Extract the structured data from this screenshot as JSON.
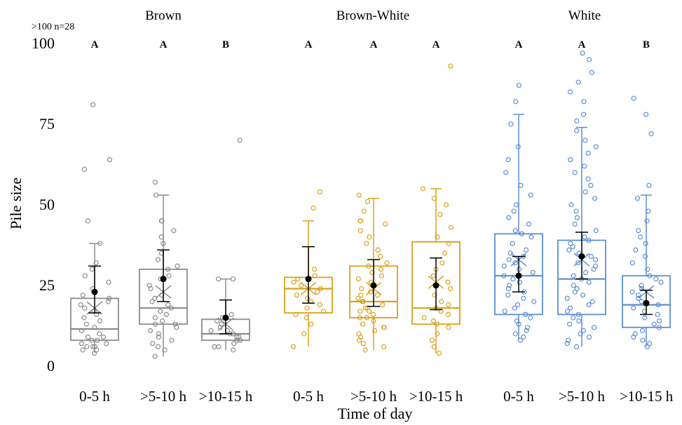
{
  "chart_data": {
    "type": "box",
    "ylabel": "Pile size",
    "xlabel": "Time of day",
    "ylim": [
      0,
      100
    ],
    "yticks": [
      0,
      25,
      50,
      75,
      100
    ],
    "note": ">100 n=28",
    "panels": [
      {
        "name": "Brown",
        "color": "#8c8c8c",
        "categories": [
          "0-5 h",
          ">5-10 h",
          ">10-15 h"
        ],
        "letters": [
          "A",
          "A",
          "B"
        ],
        "boxes": [
          {
            "q1": 8,
            "median": 11.5,
            "q3": 21,
            "whisker_low": 4,
            "whisker_high": 38,
            "mean_x": 18,
            "mean_ci": [
              16.5,
              31
            ],
            "est_mean": 23,
            "points": [
              4,
              5,
              5,
              6,
              6,
              6,
              7,
              7,
              8,
              8,
              9,
              9,
              10,
              11,
              12,
              13,
              14,
              15,
              16,
              17,
              18,
              19,
              20,
              21,
              22,
              24,
              26,
              28,
              30,
              32,
              38,
              45,
              61,
              64,
              81
            ]
          },
          {
            "q1": 13,
            "median": 18,
            "q3": 30,
            "whisker_low": 3,
            "whisker_high": 53,
            "mean_x": 23,
            "mean_ci": [
              20,
              36
            ],
            "est_mean": 27,
            "points": [
              3,
              5,
              6,
              7,
              8,
              9,
              10,
              11,
              12,
              13,
              13,
              14,
              15,
              16,
              17,
              18,
              19,
              20,
              21,
              22,
              24,
              25,
              27,
              28,
              30,
              31,
              33,
              35,
              38,
              40,
              42,
              45,
              45,
              53,
              57
            ]
          },
          {
            "q1": 8,
            "median": 10,
            "q3": 14.5,
            "whisker_low": 5,
            "whisker_high": 27,
            "mean_x": 13,
            "mean_ci": [
              10,
              20.5
            ],
            "est_mean": 15,
            "points": [
              5,
              6,
              6,
              7,
              8,
              8,
              9,
              9,
              10,
              10,
              11,
              11,
              12,
              13,
              14,
              15,
              16,
              27,
              27,
              70
            ]
          }
        ]
      },
      {
        "name": "Brown-White",
        "color": "#d9a21b",
        "categories": [
          "0-5 h",
          ">5-10 h",
          ">10-15 h"
        ],
        "letters": [
          "A",
          "A",
          "A"
        ],
        "boxes": [
          {
            "q1": 16.5,
            "median": 24,
            "q3": 27.5,
            "whisker_low": 6,
            "whisker_high": 45,
            "mean_x": 24,
            "mean_ci": [
              19.5,
              37
            ],
            "est_mean": 27,
            "points": [
              6,
              10,
              13,
              15,
              16,
              17,
              18,
              19,
              20,
              21,
              22,
              23,
              24,
              25,
              26,
              27,
              28,
              30,
              49,
              54
            ]
          },
          {
            "q1": 15,
            "median": 20,
            "q3": 31,
            "whisker_low": 5,
            "whisker_high": 52,
            "mean_x": 24,
            "mean_ci": [
              18.5,
              33
            ],
            "est_mean": 25,
            "points": [
              5,
              6,
              7,
              8,
              9,
              10,
              11,
              12,
              12,
              13,
              14,
              15,
              15,
              16,
              17,
              17,
              18,
              18,
              19,
              20,
              20,
              21,
              22,
              22,
              23,
              24,
              25,
              26,
              27,
              28,
              29,
              30,
              31,
              32,
              34,
              36,
              38,
              40,
              42,
              44,
              45,
              45,
              48,
              51,
              53
            ]
          },
          {
            "q1": 13,
            "median": 18,
            "q3": 38.5,
            "whisker_low": 4,
            "whisker_high": 55,
            "mean_x": 26,
            "mean_ci": [
              17.5,
              33.5
            ],
            "est_mean": 25,
            "points": [
              4,
              6,
              8,
              10,
              12,
              13,
              14,
              15,
              16,
              17,
              18,
              19,
              20,
              22,
              24,
              26,
              28,
              30,
              32,
              35,
              38,
              40,
              43,
              47,
              50,
              52,
              55,
              93
            ]
          }
        ]
      },
      {
        "name": "White",
        "color": "#5b8fd6",
        "categories": [
          "0-5 h",
          ">5-10 h",
          ">10-15 h"
        ],
        "letters": [
          "A",
          "A",
          "A"
        ],
        "letters_right": "B",
        "boxes": [
          {
            "q1": 16,
            "median": 28,
            "q3": 41,
            "whisker_low": 8,
            "whisker_high": 78,
            "mean_x": 33,
            "mean_ci": [
              23,
              34
            ],
            "est_mean": 28,
            "points": [
              8,
              9,
              10,
              11,
              12,
              13,
              14,
              15,
              16,
              17,
              18,
              19,
              20,
              21,
              22,
              23,
              24,
              25,
              26,
              27,
              28,
              29,
              30,
              31,
              32,
              33,
              34,
              35,
              36,
              38,
              40,
              41,
              42,
              44,
              46,
              48,
              50,
              53,
              56,
              60,
              64,
              68,
              75,
              82,
              87
            ]
          },
          {
            "q1": 16,
            "median": 27,
            "q3": 39,
            "whisker_low": 6,
            "whisker_high": 74,
            "mean_x": 33,
            "mean_ci": [
              27,
              41.5
            ],
            "est_mean": 34,
            "points": [
              6,
              7,
              8,
              9,
              10,
              11,
              12,
              13,
              14,
              15,
              16,
              17,
              18,
              19,
              20,
              21,
              22,
              23,
              24,
              25,
              26,
              27,
              28,
              29,
              30,
              31,
              32,
              33,
              34,
              35,
              36,
              37,
              38,
              39,
              40,
              42,
              44,
              46,
              48,
              50,
              52,
              54,
              56,
              58,
              60,
              62,
              64,
              66,
              68,
              70,
              73,
              76,
              78,
              82,
              85,
              88,
              91,
              95,
              97
            ]
          },
          {
            "q1": 12,
            "median": 19,
            "q3": 28,
            "whisker_low": 6,
            "whisker_high": 53,
            "mean_x": 23,
            "mean_ci": [
              16,
              23.5
            ],
            "est_mean": 19.5,
            "points": [
              6,
              7,
              8,
              9,
              10,
              11,
              12,
              13,
              14,
              15,
              16,
              17,
              18,
              19,
              20,
              21,
              22,
              23,
              24,
              25,
              26,
              27,
              28,
              30,
              32,
              34,
              36,
              38,
              40,
              42,
              45,
              48,
              52,
              56,
              72,
              78,
              83
            ]
          }
        ]
      }
    ],
    "panel_letters": [
      [
        "A",
        "A",
        "B"
      ],
      [
        "A",
        "A",
        "A"
      ],
      [
        "A",
        "A",
        "B"
      ]
    ]
  }
}
